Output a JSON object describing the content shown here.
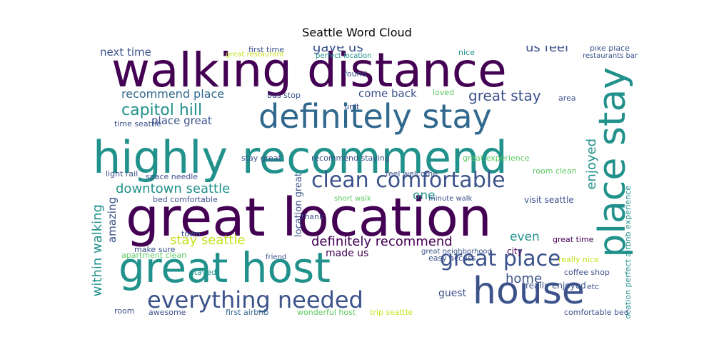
{
  "title": "Seattle Word Cloud",
  "palette": {
    "purple": "#440154",
    "indigo": "#3b528b",
    "blue": "#31688e",
    "teal": "#21918c",
    "green": "#35b779",
    "lime": "#5ec962",
    "yellow": "#c8e020"
  },
  "words": [
    {
      "text": "walking distance",
      "color": "purple"
    },
    {
      "text": "highly recommend",
      "color": "teal"
    },
    {
      "text": "great location",
      "color": "purple"
    },
    {
      "text": "great host",
      "color": "teal"
    },
    {
      "text": "definitely stay",
      "color": "blue"
    },
    {
      "text": "house",
      "color": "indigo"
    },
    {
      "text": "place stay",
      "color": "teal"
    },
    {
      "text": "everything needed",
      "color": "indigo"
    },
    {
      "text": "clean comfortable",
      "color": "indigo"
    },
    {
      "text": "great place",
      "color": "indigo"
    },
    {
      "text": "capitol hill",
      "color": "teal"
    },
    {
      "text": "downtown seattle",
      "color": "teal"
    },
    {
      "text": "definitely recommend",
      "color": "purple"
    },
    {
      "text": "within walking",
      "color": "teal"
    },
    {
      "text": "great stay",
      "color": "indigo"
    },
    {
      "text": "recommend place",
      "color": "blue"
    },
    {
      "text": "enjoyed",
      "color": "teal"
    },
    {
      "text": "gave us",
      "color": "indigo"
    },
    {
      "text": "us feel",
      "color": "indigo"
    },
    {
      "text": "next time",
      "color": "indigo"
    },
    {
      "text": "place great",
      "color": "indigo"
    },
    {
      "text": "stay seattle",
      "color": "yellow"
    },
    {
      "text": "home",
      "color": "indigo"
    },
    {
      "text": "amazing",
      "color": "indigo"
    },
    {
      "text": "come back",
      "color": "indigo"
    },
    {
      "text": "one",
      "color": "teal"
    },
    {
      "text": "even",
      "color": "teal"
    },
    {
      "text": "made us",
      "color": "purple"
    },
    {
      "text": "guest",
      "color": "indigo"
    },
    {
      "text": "really enjoyed",
      "color": "indigo"
    },
    {
      "text": "location perfect airbnb experience",
      "color": "teal"
    },
    {
      "text": "location great",
      "color": "indigo"
    },
    {
      "text": "great time",
      "color": "purple"
    },
    {
      "text": "bus stop",
      "color": "indigo"
    },
    {
      "text": "visit seattle",
      "color": "indigo"
    },
    {
      "text": "feel welcome",
      "color": "indigo"
    },
    {
      "text": "light rail",
      "color": "indigo"
    },
    {
      "text": "space needle",
      "color": "indigo"
    },
    {
      "text": "bed comfortable",
      "color": "indigo"
    },
    {
      "text": "apartment clean",
      "color": "lime"
    },
    {
      "text": "pike place",
      "color": "indigo"
    },
    {
      "text": "easy access",
      "color": "indigo"
    },
    {
      "text": "coffee shop",
      "color": "indigo"
    },
    {
      "text": "make sure",
      "color": "indigo"
    },
    {
      "text": "awesome",
      "color": "indigo"
    },
    {
      "text": "first airbnb",
      "color": "blue"
    },
    {
      "text": "wonderful host",
      "color": "lime"
    },
    {
      "text": "trip seattle",
      "color": "yellow"
    },
    {
      "text": "comfortable bed",
      "color": "indigo"
    },
    {
      "text": "first time",
      "color": "indigo"
    },
    {
      "text": "stay great",
      "color": "indigo"
    },
    {
      "text": "recommend staying",
      "color": "indigo"
    },
    {
      "text": "great experience",
      "color": "lime"
    },
    {
      "text": "time seattle",
      "color": "indigo"
    },
    {
      "text": "found",
      "color": "indigo"
    },
    {
      "text": "loved",
      "color": "lime"
    },
    {
      "text": "nice",
      "color": "teal"
    },
    {
      "text": "really nice",
      "color": "yellow"
    },
    {
      "text": "city",
      "color": "purple"
    },
    {
      "text": "stayed",
      "color": "teal"
    },
    {
      "text": "room",
      "color": "indigo"
    },
    {
      "text": "great neighborhood",
      "color": "indigo"
    },
    {
      "text": "town",
      "color": "indigo"
    },
    {
      "text": "thank",
      "color": "indigo"
    },
    {
      "text": "etc",
      "color": "indigo"
    },
    {
      "text": "room clean",
      "color": "lime"
    },
    {
      "text": "unit",
      "color": "indigo"
    },
    {
      "text": "great restaurant",
      "color": "yellow"
    },
    {
      "text": "perfect location",
      "color": "teal"
    },
    {
      "text": "restaurants bar",
      "color": "indigo"
    },
    {
      "text": "minute walk",
      "color": "indigo"
    },
    {
      "text": "short walk",
      "color": "lime"
    },
    {
      "text": "friend",
      "color": "indigo"
    },
    {
      "text": "area",
      "color": "indigo"
    }
  ]
}
